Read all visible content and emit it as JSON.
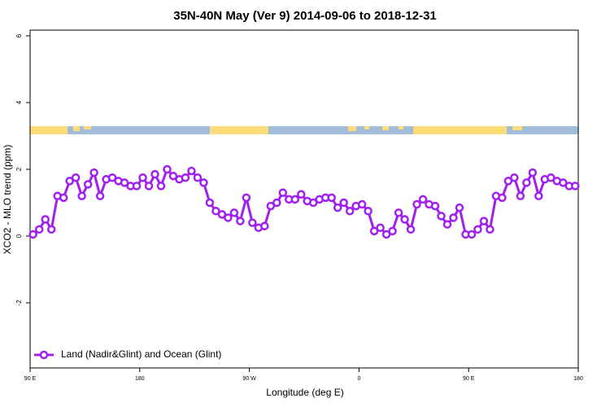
{
  "chart_data": {
    "type": "line",
    "title": "35N-40N May (Ver 9)   2014-09-06 to 2018-12-31",
    "x_label": "Longitude (deg E)",
    "y_label": "XCO2 - MLO trend (ppm)",
    "xlim": [
      90,
      540
    ],
    "ylim": [
      -3.95,
      6.17
    ],
    "xticks": [
      {
        "value": 90,
        "label": "90 E"
      },
      180,
      {
        "value": 270,
        "label": "90 W"
      },
      {
        "value": 360,
        "label": "0"
      },
      {
        "value": 450,
        "label": "90 E"
      },
      {
        "value": 540,
        "label": "180"
      }
    ],
    "yticks": [
      -2,
      0,
      2,
      4,
      6
    ],
    "legend": "bottomleft",
    "x": [
      92.5,
      97.5,
      102.5,
      107.5,
      112.5,
      117.5,
      122.5,
      127.5,
      132.5,
      137.5,
      142.5,
      147.5,
      152.5,
      157.5,
      162.5,
      167.5,
      172.5,
      177.5,
      182.5,
      187.5,
      192.5,
      197.5,
      202.5,
      207.5,
      212.5,
      217.5,
      222.5,
      227.5,
      232.5,
      237.5,
      242.5,
      247.5,
      252.5,
      257.5,
      262.5,
      267.5,
      272.5,
      277.5,
      282.5,
      287.5,
      292.5,
      297.5,
      302.5,
      307.5,
      312.5,
      317.5,
      322.5,
      327.5,
      332.5,
      337.5,
      342.5,
      347.5,
      352.5,
      357.5,
      362.5,
      367.5,
      372.5,
      377.5,
      382.5,
      387.5,
      392.5,
      397.5,
      402.5,
      407.5,
      412.5,
      417.5,
      422.5,
      427.5,
      432.5,
      437.5,
      442.5,
      447.5,
      452.5,
      457.5,
      462.5,
      467.5,
      472.5,
      477.5,
      482.5,
      487.5,
      492.5,
      497.5,
      502.5,
      507.5,
      512.5,
      517.5,
      522.5,
      527.5,
      532.5,
      537.5
    ],
    "series": [
      {
        "name": "Land (Nadir&Glint) and Ocean (Glint)",
        "color": "#a020f0",
        "values": [
          0.05,
          0.2,
          0.5,
          0.2,
          1.2,
          1.15,
          1.65,
          1.75,
          1.2,
          1.55,
          1.9,
          1.2,
          1.7,
          1.75,
          1.65,
          1.6,
          1.5,
          1.5,
          1.75,
          1.5,
          1.85,
          1.5,
          2.0,
          1.8,
          1.7,
          1.75,
          1.95,
          1.75,
          1.6,
          1.0,
          0.75,
          0.65,
          0.55,
          0.7,
          0.45,
          1.15,
          0.4,
          0.25,
          0.3,
          0.9,
          1.0,
          1.3,
          1.1,
          1.1,
          1.25,
          1.05,
          1.0,
          1.1,
          1.15,
          1.15,
          0.85,
          1.0,
          0.75,
          0.9,
          0.95,
          0.75,
          0.15,
          0.25,
          0.05,
          0.15,
          0.7,
          0.5,
          0.2,
          0.95,
          1.1,
          0.95,
          0.9,
          0.6,
          0.35,
          0.55,
          0.85,
          0.05,
          0.05,
          0.2,
          0.45,
          0.2,
          1.2,
          1.15,
          1.65,
          1.75,
          1.2,
          1.6,
          1.9,
          1.2,
          1.7,
          1.75,
          1.65,
          1.6,
          1.5,
          1.5
        ]
      }
    ]
  }
}
